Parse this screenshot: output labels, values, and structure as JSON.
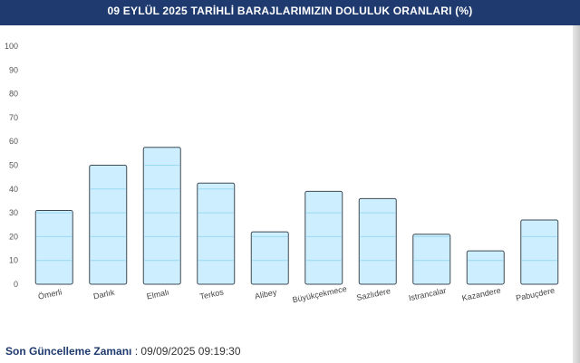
{
  "header": {
    "title": "09 EYLÜL 2025 TARİHLİ BARAJLARIMIZIN DOLULUK ORANLARI (%)"
  },
  "footer": {
    "label": "Son Güncelleme Zamanı",
    "separator": " : ",
    "value": "09/09/2025 09:19:30"
  },
  "chart_data": {
    "type": "bar",
    "title": "09 EYLÜL 2025 TARİHLİ BARAJLARIMIZIN DOLULUK ORANLARI (%)",
    "categories": [
      "Ömerli",
      "Darlık",
      "Elmalı",
      "Terkos",
      "Alibey",
      "Büyükçekmece",
      "Sazlıdere",
      "Istrancalar",
      "Kazandere",
      "Pabuçdere"
    ],
    "values": [
      31,
      50,
      57.5,
      42.5,
      22,
      39,
      36,
      21,
      14,
      27
    ],
    "ylim": [
      0,
      100
    ],
    "yticks": [
      0,
      10,
      20,
      30,
      40,
      50,
      60,
      70,
      80,
      90,
      100
    ],
    "xlabel": "",
    "ylabel": "",
    "grid": false,
    "colors": {
      "bar_fill": "#cdeefe",
      "bar_stroke": "#3f4a54",
      "bar_gridline": "#9ad9f5"
    }
  }
}
